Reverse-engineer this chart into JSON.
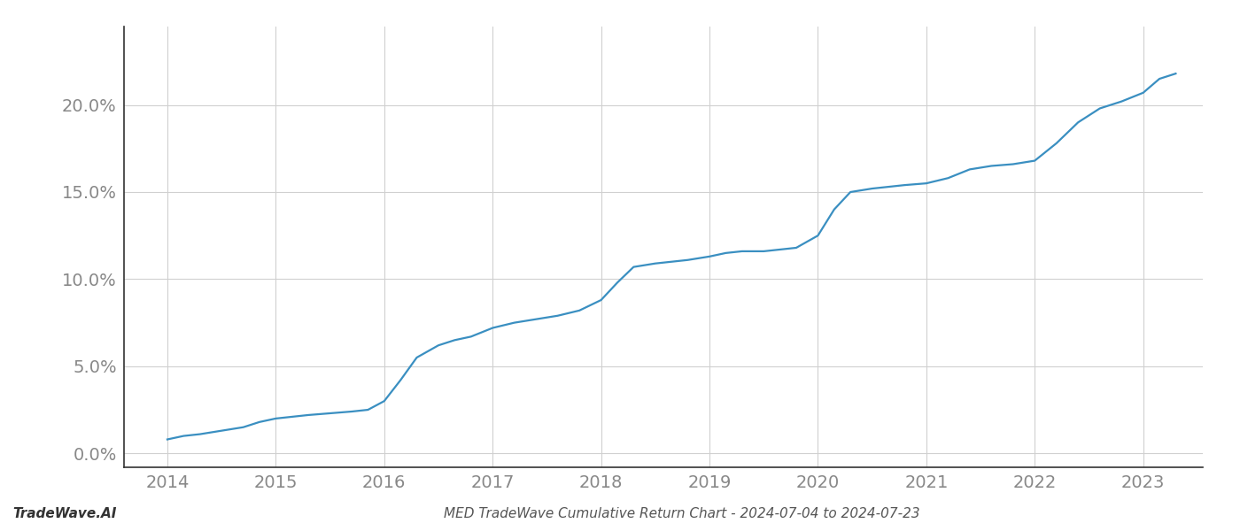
{
  "x": [
    2014.0,
    2014.15,
    2014.3,
    2014.5,
    2014.7,
    2014.85,
    2015.0,
    2015.15,
    2015.3,
    2015.5,
    2015.7,
    2015.85,
    2016.0,
    2016.15,
    2016.3,
    2016.5,
    2016.65,
    2016.8,
    2017.0,
    2017.2,
    2017.4,
    2017.6,
    2017.8,
    2018.0,
    2018.15,
    2018.3,
    2018.5,
    2018.65,
    2018.8,
    2019.0,
    2019.15,
    2019.3,
    2019.5,
    2019.65,
    2019.8,
    2020.0,
    2020.15,
    2020.3,
    2020.5,
    2020.65,
    2020.8,
    2021.0,
    2021.2,
    2021.4,
    2021.6,
    2021.8,
    2022.0,
    2022.2,
    2022.4,
    2022.6,
    2022.8,
    2023.0,
    2023.15,
    2023.3
  ],
  "y": [
    0.008,
    0.01,
    0.011,
    0.013,
    0.015,
    0.018,
    0.02,
    0.021,
    0.022,
    0.023,
    0.024,
    0.025,
    0.03,
    0.042,
    0.055,
    0.062,
    0.065,
    0.067,
    0.072,
    0.075,
    0.077,
    0.079,
    0.082,
    0.088,
    0.098,
    0.107,
    0.109,
    0.11,
    0.111,
    0.113,
    0.115,
    0.116,
    0.116,
    0.117,
    0.118,
    0.125,
    0.14,
    0.15,
    0.152,
    0.153,
    0.154,
    0.155,
    0.158,
    0.163,
    0.165,
    0.166,
    0.168,
    0.178,
    0.19,
    0.198,
    0.202,
    0.207,
    0.215,
    0.218
  ],
  "line_color": "#3a8fc1",
  "line_width": 1.6,
  "bg_color": "#ffffff",
  "grid_color": "#d0d0d0",
  "axis_color": "#333333",
  "tick_color": "#888888",
  "title": "MED TradeWave Cumulative Return Chart - 2024-07-04 to 2024-07-23",
  "watermark": "TradeWave.AI",
  "xlabel_ticks": [
    2014,
    2015,
    2016,
    2017,
    2018,
    2019,
    2020,
    2021,
    2022,
    2023
  ],
  "yticks": [
    0.0,
    0.05,
    0.1,
    0.15,
    0.2
  ],
  "ytick_labels": [
    "0.0%",
    "5.0%",
    "10.0%",
    "15.0%",
    "20.0%"
  ],
  "ylim": [
    -0.008,
    0.245
  ],
  "xlim": [
    2013.6,
    2023.55
  ]
}
